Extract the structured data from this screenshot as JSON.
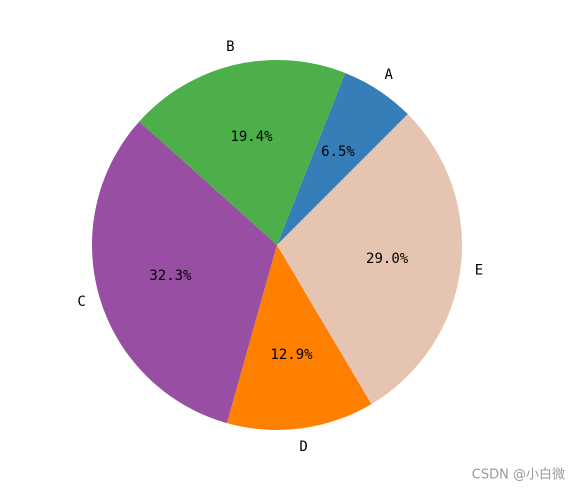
{
  "chart_data": {
    "type": "pie",
    "categories": [
      "A",
      "B",
      "C",
      "D",
      "E"
    ],
    "values": [
      6.5,
      19.4,
      32.3,
      12.9,
      29.0
    ],
    "value_labels": [
      "6.5%",
      "19.4%",
      "32.3%",
      "12.9%",
      "29.0%"
    ],
    "colors": [
      "#377eb8",
      "#4daf4a",
      "#984ea3",
      "#ff7f00",
      "#e6c4b2"
    ],
    "start_angle": 45,
    "watermark": "CSDN @小白微"
  }
}
